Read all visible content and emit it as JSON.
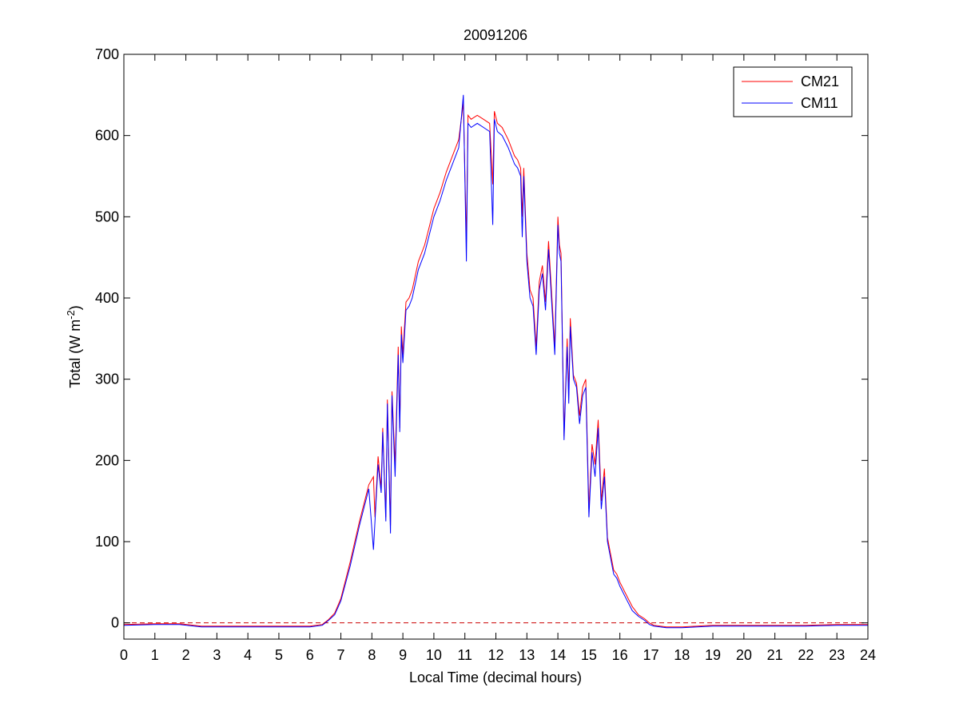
{
  "chart_data": {
    "type": "line",
    "title": "20091206",
    "xlabel": "Local Time (decimal hours)",
    "ylabel": {
      "prefix": "Total (W m",
      "superscript": "-2",
      "suffix": ")"
    },
    "xlim": [
      0,
      24
    ],
    "ylim": [
      -20,
      700
    ],
    "xticks": [
      0,
      1,
      2,
      3,
      4,
      5,
      6,
      7,
      8,
      9,
      10,
      11,
      12,
      13,
      14,
      15,
      16,
      17,
      18,
      19,
      20,
      21,
      22,
      23,
      24
    ],
    "yticks": [
      0,
      100,
      200,
      300,
      400,
      500,
      600,
      700
    ],
    "grid": false,
    "legend_position": "top-right",
    "reference_line": {
      "y": 0,
      "color": "#cc0000",
      "style": "dashed"
    },
    "series": [
      {
        "name": "CM21",
        "color": "#ff0000",
        "x": [
          0,
          1,
          1.8,
          2.5,
          3,
          4,
          5,
          6,
          6.4,
          6.6,
          6.8,
          7,
          7.3,
          7.6,
          7.9,
          8.05,
          8.1,
          8.2,
          8.3,
          8.35,
          8.45,
          8.5,
          8.6,
          8.65,
          8.75,
          8.85,
          8.9,
          8.95,
          9,
          9.1,
          9.2,
          9.3,
          9.5,
          9.7,
          9.8,
          10,
          10.2,
          10.4,
          10.6,
          10.8,
          10.95,
          11.05,
          11.1,
          11.2,
          11.4,
          11.6,
          11.8,
          11.9,
          11.95,
          12.05,
          12.2,
          12.4,
          12.6,
          12.7,
          12.8,
          12.85,
          12.9,
          13,
          13.1,
          13.2,
          13.3,
          13.4,
          13.5,
          13.6,
          13.7,
          13.8,
          13.9,
          14,
          14.05,
          14.1,
          14.2,
          14.3,
          14.35,
          14.4,
          14.5,
          14.6,
          14.7,
          14.8,
          14.9,
          15,
          15.1,
          15.2,
          15.3,
          15.4,
          15.5,
          15.6,
          15.7,
          15.8,
          15.9,
          16,
          16.2,
          16.4,
          16.6,
          16.8,
          16.95,
          17.1,
          17.5,
          18,
          18.5,
          19,
          20,
          21,
          22,
          23,
          24
        ],
        "y": [
          -2,
          -1,
          -1,
          -4,
          -4,
          -4,
          -4,
          -4,
          -2,
          4,
          12,
          30,
          75,
          125,
          170,
          180,
          130,
          205,
          165,
          240,
          130,
          275,
          120,
          285,
          195,
          340,
          240,
          365,
          330,
          395,
          400,
          410,
          445,
          465,
          480,
          510,
          530,
          555,
          575,
          595,
          640,
          470,
          625,
          620,
          625,
          620,
          615,
          540,
          630,
          615,
          610,
          595,
          575,
          570,
          560,
          500,
          560,
          455,
          410,
          400,
          340,
          420,
          440,
          395,
          470,
          405,
          340,
          500,
          465,
          455,
          230,
          350,
          280,
          375,
          305,
          295,
          255,
          290,
          300,
          140,
          220,
          195,
          250,
          150,
          190,
          105,
          85,
          65,
          60,
          50,
          35,
          20,
          10,
          5,
          0,
          -3,
          -5,
          -5,
          -4,
          -3,
          -3,
          -3,
          -3,
          -2,
          -2
        ]
      },
      {
        "name": "CM11",
        "color": "#0000ff",
        "x": [
          0,
          1,
          1.8,
          2.5,
          3,
          4,
          5,
          6,
          6.4,
          6.6,
          6.8,
          7,
          7.3,
          7.6,
          7.9,
          8.05,
          8.1,
          8.2,
          8.3,
          8.35,
          8.45,
          8.5,
          8.6,
          8.65,
          8.75,
          8.85,
          8.9,
          8.95,
          9,
          9.1,
          9.2,
          9.3,
          9.5,
          9.7,
          9.8,
          10,
          10.2,
          10.4,
          10.6,
          10.8,
          10.95,
          11.05,
          11.1,
          11.2,
          11.4,
          11.6,
          11.8,
          11.9,
          11.95,
          12.05,
          12.2,
          12.4,
          12.6,
          12.7,
          12.8,
          12.85,
          12.9,
          13,
          13.1,
          13.2,
          13.3,
          13.4,
          13.5,
          13.6,
          13.7,
          13.8,
          13.9,
          14,
          14.05,
          14.1,
          14.2,
          14.3,
          14.35,
          14.4,
          14.5,
          14.6,
          14.7,
          14.8,
          14.9,
          15,
          15.1,
          15.2,
          15.3,
          15.4,
          15.5,
          15.6,
          15.7,
          15.8,
          15.9,
          16,
          16.2,
          16.4,
          16.6,
          16.8,
          16.95,
          17.1,
          17.5,
          18,
          18.5,
          19,
          20,
          21,
          22,
          23,
          24
        ],
        "y": [
          -3,
          -2,
          -2,
          -5,
          -5,
          -5,
          -5,
          -5,
          -3,
          3,
          10,
          27,
          70,
          120,
          165,
          90,
          125,
          195,
          160,
          235,
          125,
          270,
          110,
          280,
          180,
          330,
          235,
          355,
          320,
          385,
          390,
          400,
          435,
          455,
          470,
          500,
          520,
          545,
          565,
          585,
          650,
          445,
          615,
          610,
          615,
          610,
          605,
          490,
          620,
          605,
          600,
          585,
          565,
          560,
          550,
          475,
          550,
          445,
          400,
          390,
          330,
          410,
          430,
          385,
          460,
          395,
          330,
          490,
          455,
          445,
          225,
          340,
          270,
          365,
          300,
          290,
          245,
          280,
          290,
          130,
          210,
          180,
          240,
          140,
          180,
          100,
          80,
          60,
          55,
          45,
          30,
          15,
          8,
          3,
          -2,
          -4,
          -6,
          -6,
          -5,
          -4,
          -4,
          -4,
          -4,
          -3,
          -3
        ]
      }
    ]
  }
}
